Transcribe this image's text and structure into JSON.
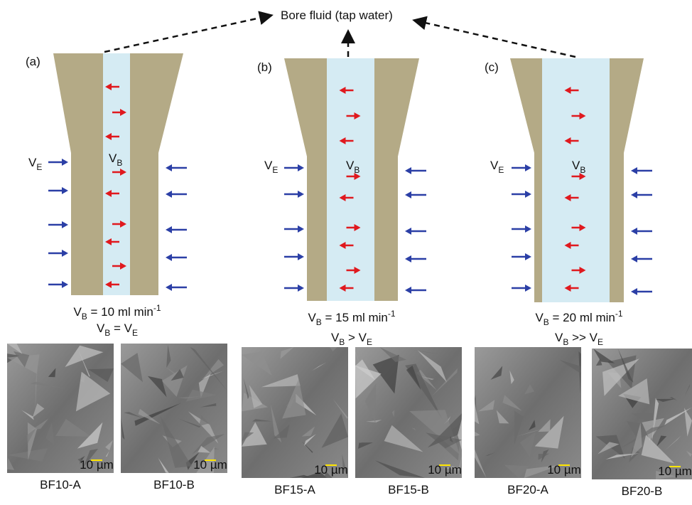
{
  "header": {
    "title": "Bore fluid (tap water)"
  },
  "panels": [
    {
      "label": "(a)",
      "ve": [
        "V",
        "E"
      ],
      "vb": [
        "V",
        "B"
      ],
      "rate": [
        "V",
        "B",
        " = 10 ml min",
        "-1"
      ],
      "relation": [
        "V",
        "B",
        " = V",
        "E"
      ],
      "images": [
        {
          "caption": "BF10-A",
          "scale": "10 µm"
        },
        {
          "caption": "BF10-B",
          "scale": "10 µm"
        }
      ]
    },
    {
      "label": "(b)",
      "ve": [
        "V",
        "E"
      ],
      "vb": [
        "V",
        "B"
      ],
      "rate": [
        "V",
        "B",
        " = 15 ml min",
        "-1"
      ],
      "relation": [
        "V",
        "B",
        " > V",
        "E"
      ],
      "images": [
        {
          "caption": "BF15-A",
          "scale": "10 µm"
        },
        {
          "caption": "BF15-B",
          "scale": "10 µm"
        }
      ]
    },
    {
      "label": "(c)",
      "ve": [
        "V",
        "E"
      ],
      "vb": [
        "V",
        "B"
      ],
      "rate": [
        "V",
        "B",
        " = 20 ml min",
        "-1"
      ],
      "relation": [
        "V",
        "B",
        " >> V",
        "E"
      ],
      "images": [
        {
          "caption": "BF20-A",
          "scale": "10 µm"
        },
        {
          "caption": "BF20-B",
          "scale": "10 µm"
        }
      ]
    }
  ]
}
